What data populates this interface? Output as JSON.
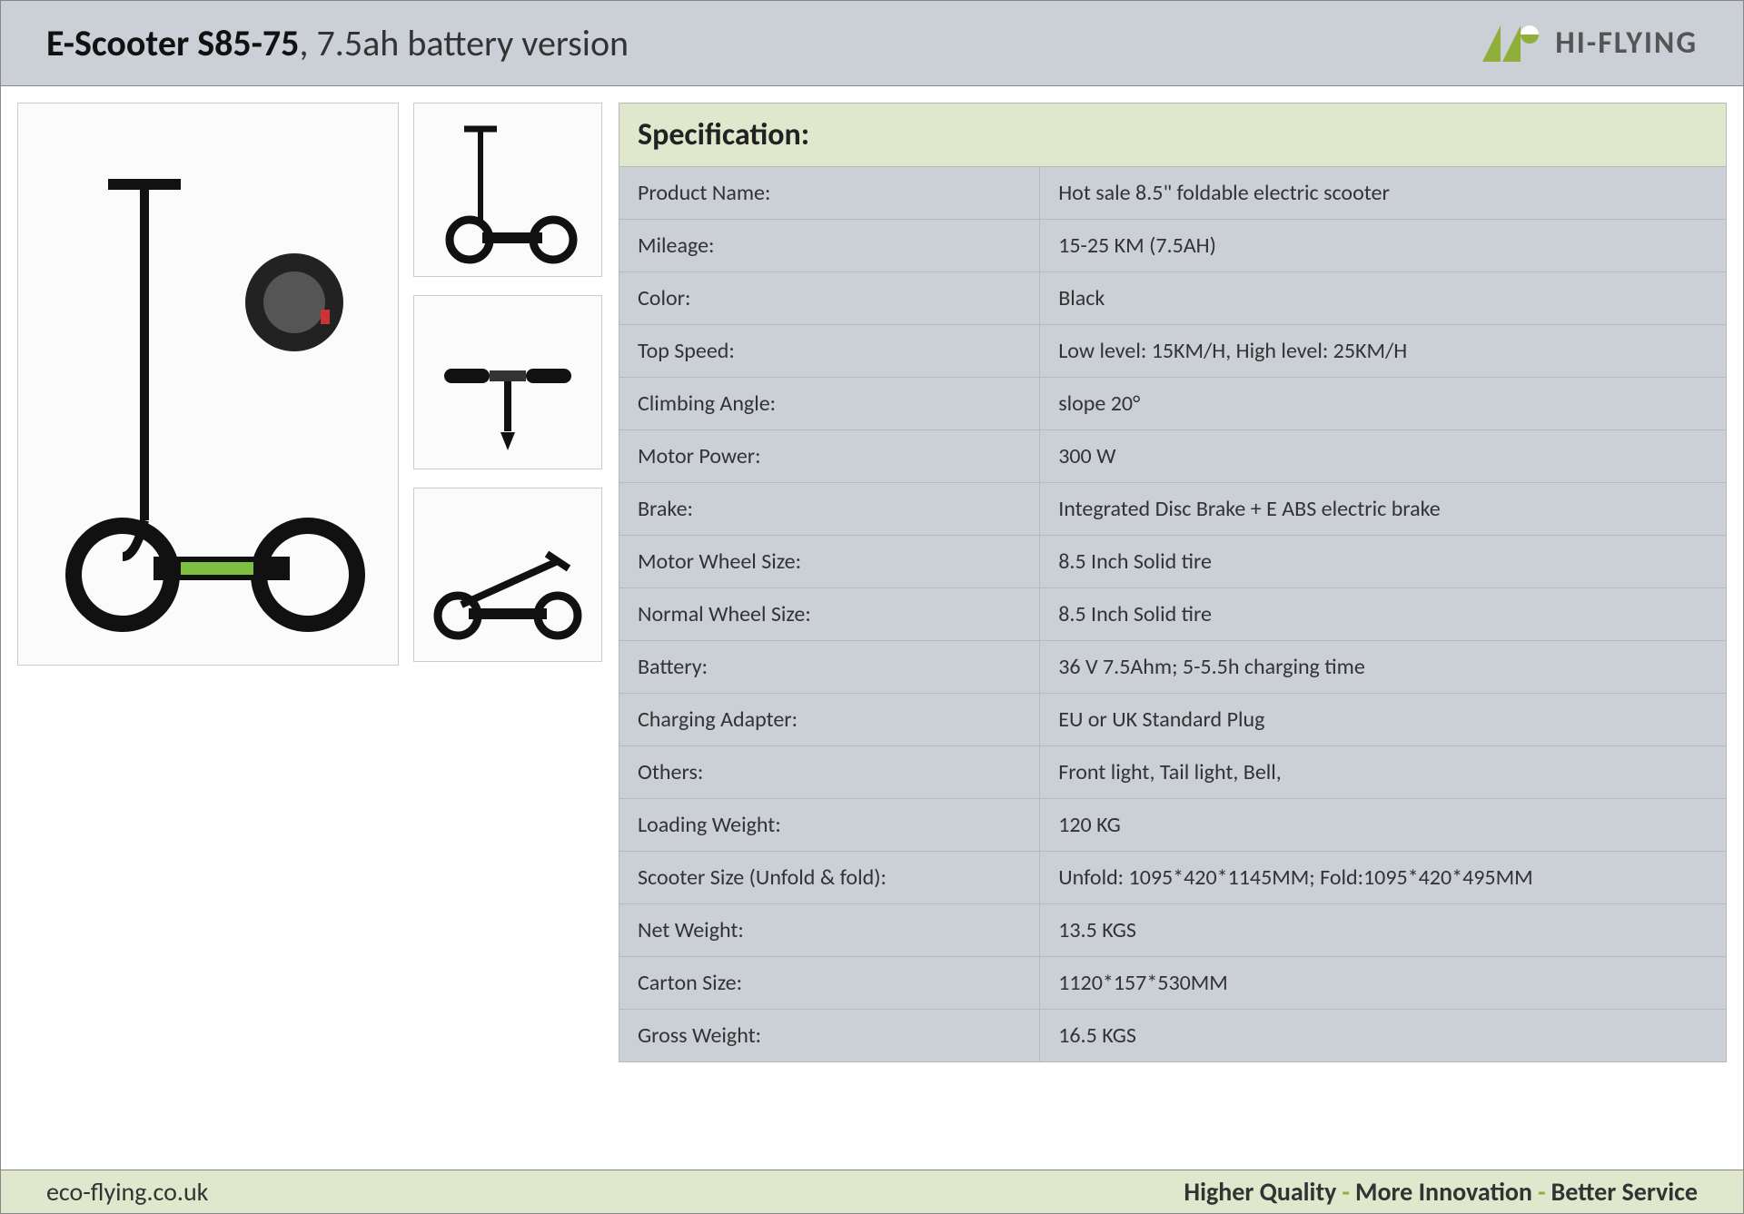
{
  "header": {
    "title_bold": "E-Scooter S85-75",
    "title_light": ", 7.5ah battery version",
    "brand_name": "HI-FLYING",
    "brand_color": "#8fae3a",
    "brand_text_color": "#555555",
    "header_bg": "#cbcfd6"
  },
  "spec": {
    "heading": "Specification:",
    "heading_bg": "#dfe8cd",
    "row_bg": "#cbcfd6",
    "border_color": "#b9b9b9",
    "label_fontsize": 24,
    "rows": [
      {
        "label": "Product Name:",
        "value": "Hot sale 8.5\" foldable electric scooter"
      },
      {
        "label": "Mileage:",
        "value": "15-25 KM (7.5AH)"
      },
      {
        "label": "Color:",
        "value": "Black"
      },
      {
        "label": "Top Speed:",
        "value": "Low level: 15KM/H, High level: 25KM/H"
      },
      {
        "label": "Climbing Angle:",
        "value": "slope 20°"
      },
      {
        "label": "Motor Power:",
        "value": "300 W"
      },
      {
        "label": "Brake:",
        "value": "Integrated Disc Brake + E ABS electric brake"
      },
      {
        "label": "Motor Wheel Size:",
        "value": "8.5 Inch Solid tire"
      },
      {
        "label": "Normal Wheel Size:",
        "value": "8.5 Inch Solid tire"
      },
      {
        "label": "Battery:",
        "value": "36 V 7.5Ahm; 5-5.5h charging time"
      },
      {
        "label": "Charging Adapter:",
        "value": "EU or UK Standard Plug"
      },
      {
        "label": "Others:",
        "value": "Front light, Tail light, Bell,"
      },
      {
        "label": "Loading Weight:",
        "value": "120 KG"
      },
      {
        "label": "Scooter Size (Unfold & fold):",
        "value": "Unfold: 1095*420*1145MM; Fold:1095*420*495MM"
      },
      {
        "label": "Net Weight:",
        "value": "13.5 KGS"
      },
      {
        "label": "Carton Size:",
        "value": "1120*157*530MM"
      },
      {
        "label": "Gross Weight:",
        "value": "16.5 KGS"
      }
    ]
  },
  "images": {
    "main_alt": "scooter-main",
    "thumbs": [
      "scooter-angle",
      "scooter-handlebar",
      "scooter-folded"
    ],
    "wheel_inset_alt": "wheel-closeup"
  },
  "footer": {
    "url": "eco-flying.co.uk",
    "tag1": "Higher Quality",
    "tag2": "More Innovation",
    "tag3": "Better Service",
    "bg": "#dfe8cd",
    "sep_color": "#8fae3a"
  }
}
